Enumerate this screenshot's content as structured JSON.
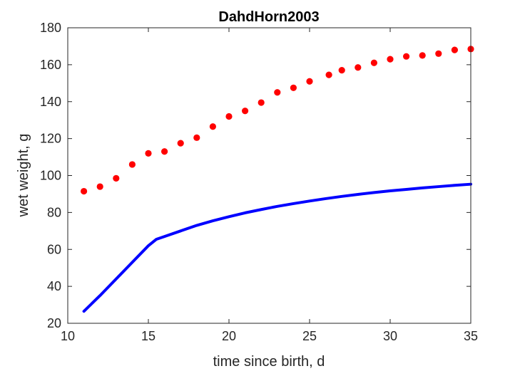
{
  "chart_data": {
    "type": "scatter",
    "title": "DahdHorn2003",
    "xlabel": "time since birth, d",
    "ylabel": "wet weight, g",
    "xlim": [
      10,
      35
    ],
    "ylim": [
      20,
      180
    ],
    "xticks": [
      10,
      15,
      20,
      25,
      30,
      35
    ],
    "yticks": [
      20,
      40,
      60,
      80,
      100,
      120,
      140,
      160,
      180
    ],
    "grid": false,
    "series": [
      {
        "kind": "points",
        "color": "#ff0000",
        "x": [
          11,
          12,
          13,
          14,
          15,
          16,
          17,
          18,
          19,
          20,
          21,
          22,
          23,
          24,
          25,
          26.2,
          27,
          28,
          29,
          30,
          31,
          32,
          33,
          34,
          35
        ],
        "y": [
          91.5,
          94,
          98.5,
          106,
          112,
          113,
          117.5,
          120.5,
          126.5,
          132,
          135,
          139.5,
          145,
          147.5,
          151,
          154.5,
          157,
          158.5,
          161,
          163,
          164.5,
          165,
          166,
          168,
          168.5
        ]
      },
      {
        "kind": "line",
        "color": "#0000ff",
        "x": [
          11,
          12,
          13,
          14,
          15,
          15.5,
          16,
          17,
          18,
          19,
          20,
          21,
          22,
          23,
          24,
          25,
          26,
          27,
          28,
          29,
          30,
          31,
          32,
          33,
          34,
          35
        ],
        "y": [
          26.5,
          35,
          44,
          53,
          62,
          65.5,
          67,
          70,
          73,
          75.5,
          77.7,
          79.8,
          81.6,
          83.3,
          84.8,
          86.2,
          87.5,
          88.7,
          89.8,
          90.8,
          91.7,
          92.5,
          93.3,
          94,
          94.7,
          95.3
        ]
      }
    ]
  }
}
